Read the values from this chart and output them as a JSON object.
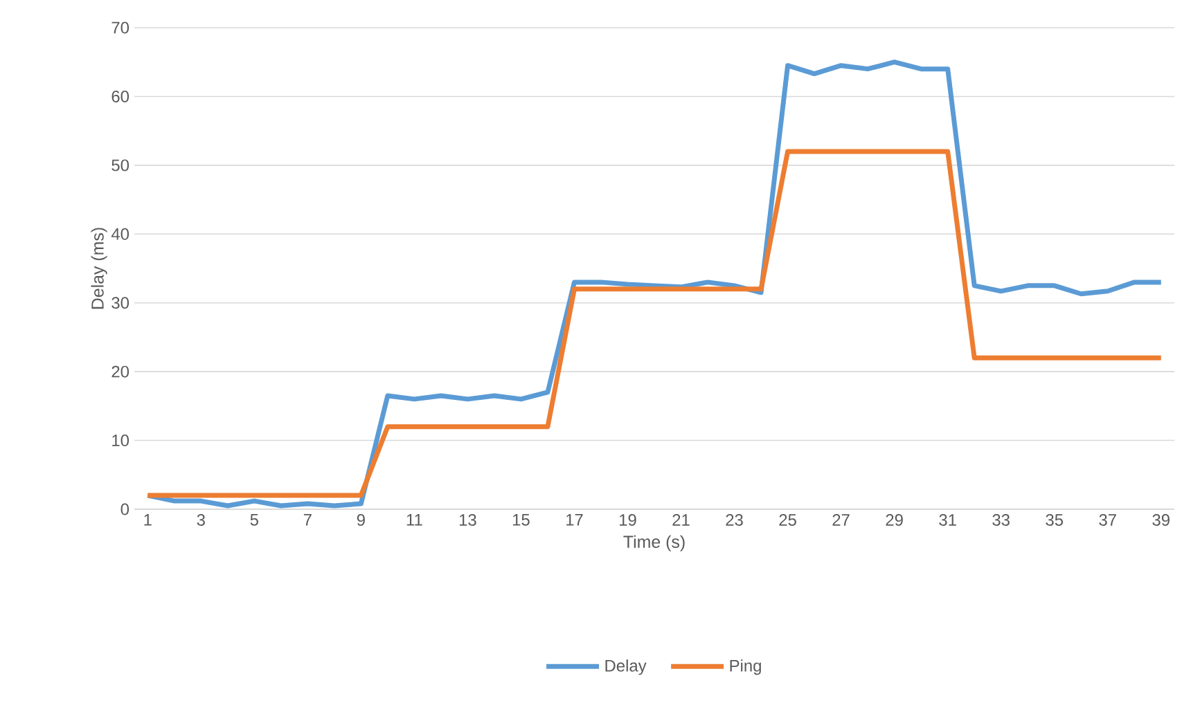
{
  "chart_data": {
    "type": "line",
    "xlabel": "Time (s)",
    "ylabel": "Delay (ms)",
    "categories": [
      "1",
      null,
      "3",
      null,
      "5",
      null,
      "7",
      null,
      "9",
      null,
      "11",
      null,
      "13",
      null,
      "15",
      null,
      "17",
      null,
      "19",
      null,
      "21",
      null,
      "23",
      null,
      "25",
      null,
      "27",
      null,
      "29",
      null,
      "31",
      null,
      "33",
      null,
      "35",
      null,
      "37",
      null,
      "39"
    ],
    "series": [
      {
        "name": "Delay",
        "color": "#5b9bd5",
        "values": [
          2,
          1.2,
          1.2,
          0.5,
          1.2,
          0.5,
          0.8,
          0.5,
          0.8,
          16.5,
          16,
          16.5,
          16,
          16.5,
          16,
          17,
          33,
          33,
          32.7,
          32.5,
          32.3,
          33,
          32.5,
          31.5,
          64.5,
          63.3,
          64.5,
          64,
          65,
          64,
          64,
          32.5,
          31.7,
          32.5,
          32.5,
          31.3,
          31.7,
          33,
          33
        ]
      },
      {
        "name": "Ping",
        "color": "#ed7d31",
        "values": [
          2,
          2,
          2,
          2,
          2,
          2,
          2,
          2,
          2,
          12,
          12,
          12,
          12,
          12,
          12,
          12,
          32,
          32,
          32,
          32,
          32,
          32,
          32,
          32,
          52,
          52,
          52,
          52,
          52,
          52,
          52,
          22,
          22,
          22,
          22,
          22,
          22,
          22,
          22
        ]
      }
    ],
    "ylim": [
      0,
      70
    ],
    "yticks": [
      0,
      10,
      20,
      30,
      40,
      50,
      60,
      70
    ],
    "grid": "y",
    "legend": "bottom",
    "marker": "none",
    "line_style": "solid"
  }
}
